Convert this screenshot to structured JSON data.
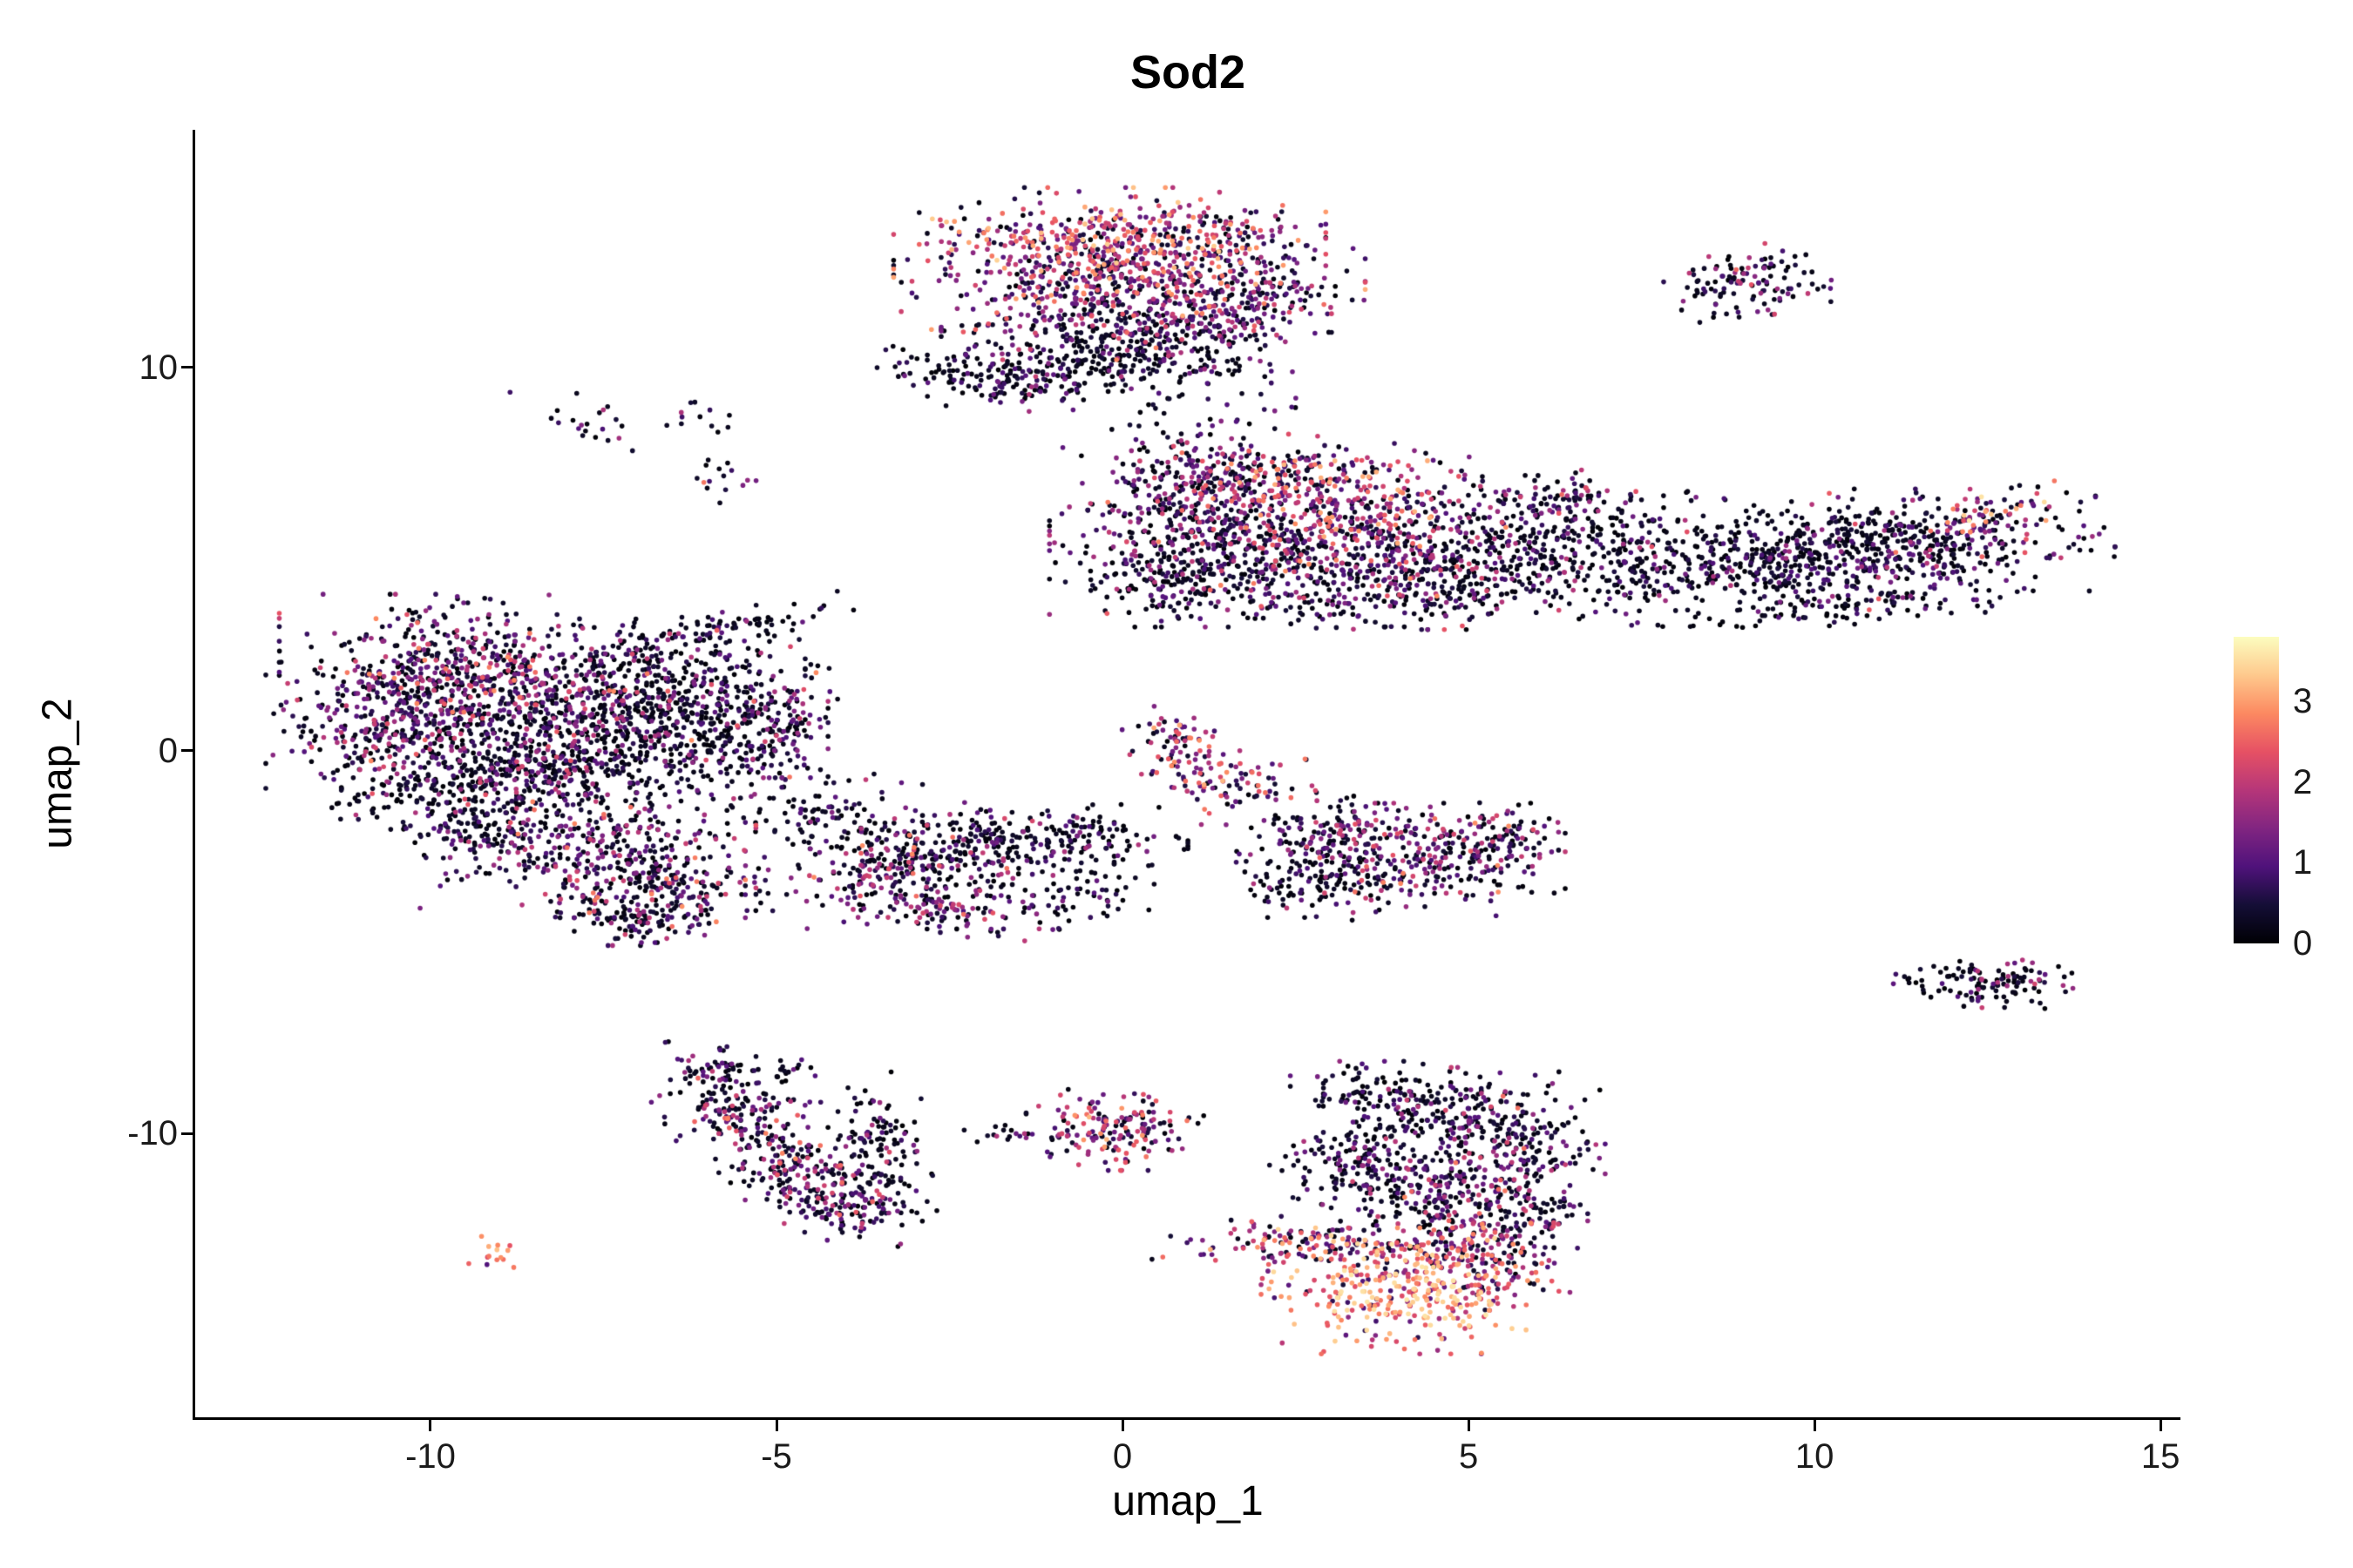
{
  "chart_data": {
    "type": "scatter",
    "title": "Sod2",
    "xlabel": "umap_1",
    "ylabel": "umap_2",
    "xlim": [
      -13.4,
      15.25
    ],
    "ylim": [
      -17.4,
      16.2
    ],
    "x_ticks": [
      -10,
      -5,
      0,
      5,
      10,
      15
    ],
    "y_ticks": [
      -10,
      0,
      10
    ],
    "grid": false,
    "legend_position": "right",
    "point_radius_px": 2.8,
    "seed": 7,
    "colorbar": {
      "min": 0,
      "max": 3.8,
      "label_values": [
        0,
        1,
        2,
        3
      ],
      "colormap": "magma",
      "stops": [
        "#000004",
        "#140E36",
        "#4F127B",
        "#812581",
        "#B63679",
        "#E65164",
        "#FC8961",
        "#FEC98D",
        "#FCFDBF"
      ]
    },
    "expression_profiles": {
      "p0": [
        [
          0.66,
          0,
          0.35
        ],
        [
          0.24,
          0.35,
          1.1
        ],
        [
          0.09,
          1.1,
          1.9
        ],
        [
          0.01,
          1.9,
          2.6
        ]
      ],
      "p1": [
        [
          0.45,
          0,
          0.4
        ],
        [
          0.34,
          0.4,
          1.4
        ],
        [
          0.17,
          1.4,
          2.2
        ],
        [
          0.04,
          2.2,
          2.9
        ]
      ],
      "p2": [
        [
          0.3,
          0,
          0.6
        ],
        [
          0.3,
          0.6,
          1.6
        ],
        [
          0.28,
          1.6,
          2.5
        ],
        [
          0.12,
          2.5,
          3.2
        ]
      ],
      "p3": [
        [
          0.14,
          0,
          0.6
        ],
        [
          0.28,
          0.6,
          1.6
        ],
        [
          0.36,
          1.6,
          2.6
        ],
        [
          0.22,
          2.6,
          3.4
        ]
      ],
      "p4": [
        [
          0.06,
          0.3,
          1.0
        ],
        [
          0.16,
          1.0,
          2.0
        ],
        [
          0.36,
          2.0,
          2.9
        ],
        [
          0.42,
          2.9,
          3.6
        ]
      ],
      "p5": [
        [
          0.55,
          0,
          0.4
        ],
        [
          0.3,
          0.4,
          1.3
        ],
        [
          0.12,
          1.3,
          2.1
        ],
        [
          0.03,
          2.1,
          2.8
        ]
      ],
      "p6": [
        [
          0.12,
          0.9,
          1.6
        ],
        [
          0.3,
          1.8,
          2.6
        ],
        [
          0.58,
          2.6,
          3.4
        ]
      ],
      "p7": [
        [
          0.35,
          0,
          0.5
        ],
        [
          0.3,
          0.5,
          1.5
        ],
        [
          0.22,
          1.5,
          2.4
        ],
        [
          0.13,
          2.4,
          3.2
        ]
      ]
    },
    "clusters": [
      {
        "name": "top-center",
        "blobs": [
          [
            0.0,
            13.4,
            1.25,
            0.55,
            0,
            380,
            "p3"
          ],
          [
            0.1,
            12.4,
            1.45,
            0.6,
            0,
            420,
            "p2"
          ],
          [
            0.2,
            11.3,
            1.2,
            0.6,
            0,
            350,
            "p1"
          ],
          [
            -0.2,
            10.2,
            1.0,
            0.5,
            0,
            250,
            "p0"
          ],
          [
            -1.8,
            9.7,
            0.75,
            0.3,
            -15,
            130,
            "p0"
          ],
          [
            1.9,
            12.0,
            0.5,
            0.9,
            0,
            130,
            "p1"
          ],
          [
            1.2,
            8.7,
            0.8,
            0.4,
            0,
            18,
            "p0"
          ]
        ]
      },
      {
        "name": "top-right-small",
        "blobs": [
          [
            9.1,
            12.2,
            0.55,
            0.42,
            10,
            120,
            "p5"
          ]
        ]
      },
      {
        "name": "upper-right-band",
        "blobs": [
          [
            0.9,
            6.6,
            0.75,
            0.85,
            0,
            260,
            "p1"
          ],
          [
            2.1,
            7.2,
            0.8,
            0.45,
            0,
            180,
            "p2"
          ],
          [
            3.4,
            6.4,
            1.0,
            0.65,
            0,
            300,
            "p2"
          ],
          [
            2.0,
            5.2,
            1.3,
            0.7,
            0,
            420,
            "p1"
          ],
          [
            0.8,
            4.4,
            0.6,
            0.5,
            0,
            140,
            "p0"
          ],
          [
            4.3,
            4.8,
            1.0,
            0.7,
            0,
            300,
            "p1"
          ],
          [
            3.4,
            3.9,
            1.2,
            0.3,
            0,
            90,
            "p0"
          ],
          [
            5.8,
            5.3,
            0.8,
            0.8,
            0,
            220,
            "p0"
          ],
          [
            6.4,
            6.6,
            0.4,
            0.35,
            0,
            60,
            "p1"
          ],
          [
            7.6,
            5.0,
            0.9,
            0.75,
            0,
            240,
            "p0"
          ],
          [
            9.3,
            4.9,
            0.9,
            0.7,
            0,
            240,
            "p0"
          ],
          [
            10.6,
            5.3,
            0.9,
            0.65,
            0,
            230,
            "p0"
          ],
          [
            12.0,
            5.6,
            0.95,
            0.55,
            12,
            260,
            "p5"
          ],
          [
            12.5,
            6.15,
            0.4,
            0.2,
            0,
            25,
            "p4"
          ],
          [
            10.7,
            3.8,
            1.4,
            0.22,
            8,
            90,
            "p0"
          ]
        ]
      },
      {
        "name": "left-large",
        "blobs": [
          [
            -9.6,
            2.2,
            1.1,
            0.8,
            0,
            400,
            "p1"
          ],
          [
            -10.5,
            0.8,
            0.8,
            0.9,
            0,
            300,
            "p1"
          ],
          [
            -8.3,
            1.2,
            1.1,
            1.0,
            0,
            450,
            "p1"
          ],
          [
            -6.7,
            1.6,
            0.9,
            0.8,
            0,
            300,
            "p0"
          ],
          [
            -9.5,
            -0.6,
            1.0,
            0.7,
            0,
            300,
            "p0"
          ],
          [
            -7.6,
            -0.5,
            1.0,
            0.8,
            0,
            300,
            "p0"
          ],
          [
            -5.9,
            0.4,
            0.7,
            0.7,
            0,
            200,
            "p0"
          ],
          [
            -6.0,
            3.1,
            1.0,
            0.17,
            22,
            80,
            "p0"
          ],
          [
            -5.0,
            2.2,
            0.4,
            0.4,
            0,
            25,
            "p0"
          ],
          [
            -7.8,
            -2.6,
            1.0,
            0.75,
            0,
            320,
            "p1"
          ],
          [
            -6.6,
            -3.6,
            0.7,
            0.6,
            0,
            200,
            "p1"
          ],
          [
            -7.1,
            -4.5,
            0.35,
            0.25,
            0,
            60,
            "p0"
          ],
          [
            -4.9,
            0.7,
            0.35,
            0.6,
            0,
            90,
            "p1"
          ],
          [
            -4.3,
            -1.8,
            0.6,
            0.6,
            0,
            90,
            "p0"
          ],
          [
            -9.4,
            -2.0,
            0.5,
            0.5,
            0,
            80,
            "p0"
          ]
        ]
      },
      {
        "name": "center-band",
        "blobs": [
          [
            -3.3,
            -3.0,
            0.85,
            0.7,
            0,
            260,
            "p1"
          ],
          [
            -2.0,
            -2.5,
            0.8,
            0.45,
            0,
            160,
            "p0"
          ],
          [
            -0.7,
            -2.3,
            0.7,
            0.4,
            0,
            120,
            "p0"
          ],
          [
            -2.5,
            -4.2,
            0.7,
            0.3,
            -10,
            90,
            "p1"
          ],
          [
            -0.6,
            -3.8,
            0.45,
            0.3,
            0,
            50,
            "p0"
          ]
        ]
      },
      {
        "name": "center-streak",
        "blobs": [
          [
            0.7,
            0.1,
            0.3,
            0.45,
            0,
            70,
            "p2"
          ],
          [
            1.5,
            -0.8,
            0.45,
            0.5,
            -40,
            80,
            "p2"
          ]
        ]
      },
      {
        "name": "center-right",
        "blobs": [
          [
            3.1,
            -2.1,
            0.55,
            0.45,
            0,
            130,
            "p1"
          ],
          [
            4.4,
            -2.9,
            0.85,
            0.65,
            0,
            280,
            "p1"
          ],
          [
            2.7,
            -3.3,
            0.5,
            0.45,
            0,
            100,
            "p0"
          ],
          [
            5.5,
            -2.3,
            0.4,
            0.4,
            0,
            70,
            "p1"
          ]
        ]
      },
      {
        "name": "right-small",
        "blobs": [
          [
            12.45,
            -6.05,
            0.55,
            0.28,
            -8,
            120,
            "p0"
          ]
        ]
      },
      {
        "name": "bottom-left-crescent",
        "blobs": [
          [
            -5.95,
            -8.5,
            0.3,
            0.45,
            20,
            70,
            "p0"
          ],
          [
            -5.5,
            -9.6,
            0.55,
            0.45,
            -40,
            130,
            "p1"
          ],
          [
            -4.7,
            -10.9,
            0.6,
            0.5,
            -45,
            150,
            "p1"
          ],
          [
            -4.0,
            -11.9,
            0.5,
            0.4,
            -30,
            120,
            "p1"
          ],
          [
            -3.45,
            -10.4,
            0.3,
            0.85,
            5,
            120,
            "p0"
          ],
          [
            -4.8,
            -8.4,
            0.3,
            0.2,
            0,
            20,
            "p0"
          ]
        ]
      },
      {
        "name": "bottom-center-small",
        "blobs": [
          [
            -0.1,
            -9.9,
            0.55,
            0.45,
            0,
            170,
            "p7"
          ],
          [
            -1.7,
            -10.0,
            0.25,
            0.15,
            0,
            15,
            "p0"
          ]
        ]
      },
      {
        "name": "tiny-hot-left",
        "blobs": [
          [
            -9.1,
            -13.1,
            0.22,
            0.18,
            0,
            14,
            "p6"
          ]
        ]
      },
      {
        "name": "bottom-right-large",
        "blobs": [
          [
            4.9,
            -9.4,
            0.85,
            0.55,
            0,
            190,
            "p5"
          ],
          [
            3.6,
            -9.0,
            0.5,
            0.35,
            0,
            80,
            "p0"
          ],
          [
            5.8,
            -10.4,
            0.5,
            0.6,
            0,
            130,
            "p1"
          ],
          [
            4.5,
            -11.3,
            0.8,
            0.65,
            0,
            230,
            "p1"
          ],
          [
            3.3,
            -10.7,
            0.5,
            0.5,
            0,
            110,
            "p0"
          ],
          [
            2.7,
            -12.9,
            0.95,
            0.3,
            -5,
            140,
            "p2"
          ],
          [
            4.0,
            -14.1,
            0.85,
            0.7,
            0,
            360,
            "p4"
          ],
          [
            5.4,
            -13.2,
            0.5,
            0.6,
            0,
            150,
            "p2"
          ],
          [
            4.55,
            -12.3,
            0.3,
            0.5,
            0,
            70,
            "p1"
          ],
          [
            5.9,
            -12.2,
            0.35,
            0.5,
            0,
            80,
            "p1"
          ]
        ]
      },
      {
        "name": "upper-left-scatter",
        "blobs": [
          [
            -7.6,
            8.5,
            0.3,
            0.35,
            0,
            20,
            "p5"
          ],
          [
            -6.1,
            8.7,
            0.25,
            0.25,
            0,
            12,
            "p0"
          ],
          [
            -6.0,
            7.1,
            0.3,
            0.4,
            0,
            14,
            "p5"
          ]
        ]
      }
    ],
    "singles": [
      [
        0.6,
        8.8,
        0.2
      ],
      [
        1.1,
        8.5,
        0.8
      ],
      [
        2.2,
        8.4,
        0.3
      ],
      [
        2.5,
        8.95,
        0.1
      ],
      [
        2.0,
        9.3,
        0.5
      ],
      [
        -6.05,
        7.0,
        2.7
      ],
      [
        2.1,
        -1.2,
        0.9
      ],
      [
        2.45,
        -1.0,
        0.2
      ],
      [
        11.3,
        -5.9,
        0.3
      ],
      [
        11.55,
        -6.0,
        0.1
      ],
      [
        -1.95,
        -10.05,
        0.4
      ],
      [
        6.7,
        6.85,
        2.3
      ],
      [
        4.9,
        7.3,
        0.4
      ],
      [
        5.2,
        7.15,
        0.2
      ],
      [
        -8.85,
        9.35,
        0.8
      ],
      [
        -2.55,
        9.0,
        0.2
      ]
    ]
  }
}
